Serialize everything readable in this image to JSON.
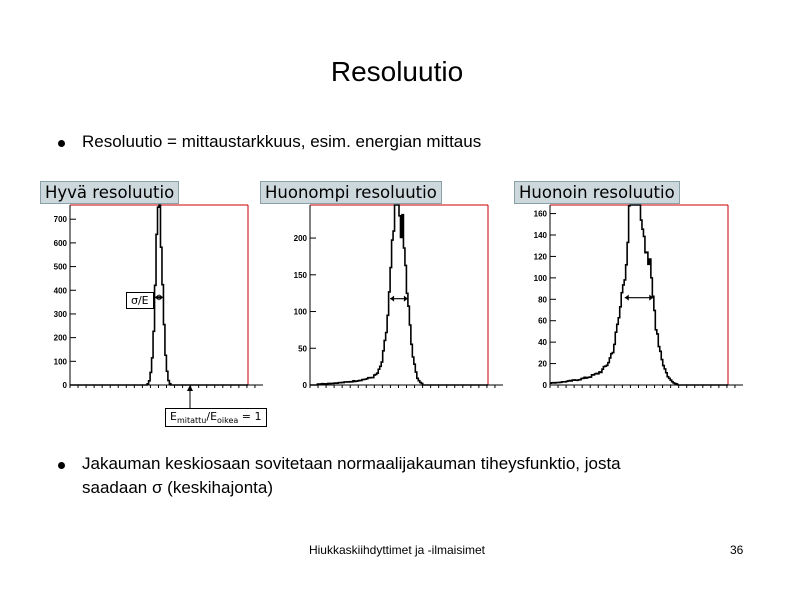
{
  "slide": {
    "title": "Resoluutio",
    "bullet1": "Resoluutio = mittaustarkkuus, esim. energian mittaus",
    "bullet2_line1": "Jakauman keskiosaan sovitetaan normaalijakauman tiheysfunktio, josta",
    "bullet2_line2": "saadaan σ (keskihajonta)",
    "footer": "Hiukkaskiihdyttimet ja -ilmaisimet",
    "page_number": "36"
  },
  "annotations": {
    "sigma_label": "σ/E",
    "ratio_label_prefix": "E",
    "ratio_sub1": "mitattu",
    "ratio_mid": "/E",
    "ratio_sub2": "oikea",
    "ratio_suffix": " = 1"
  },
  "chart_data": [
    {
      "type": "histogram",
      "title": "Hyvä resoluutio",
      "y_ticks": [
        "0",
        "100",
        "200",
        "300",
        "400",
        "500",
        "600",
        "700"
      ],
      "ylim": [
        0,
        760
      ],
      "xlim": [
        0.7,
        1.3
      ],
      "peak": {
        "x": 1.0,
        "y": 740,
        "sigma": 0.012
      },
      "tail": 0,
      "fwhm_marker": true
    },
    {
      "type": "histogram",
      "title": "Huonompi resoluutio",
      "y_ticks": [
        "0",
        "50",
        "100",
        "150",
        "200"
      ],
      "ylim": [
        0,
        245
      ],
      "xlim": [
        0.7,
        1.3
      ],
      "peak": {
        "x": 1.0,
        "y": 235,
        "sigma": 0.025
      },
      "tail": 0.12,
      "fwhm_marker": true
    },
    {
      "type": "histogram",
      "title": "Huonoin resoluutio",
      "y_ticks": [
        "0",
        "20",
        "40",
        "60",
        "80",
        "100",
        "120",
        "140",
        "160"
      ],
      "ylim": [
        0,
        168
      ],
      "xlim": [
        0.7,
        1.3
      ],
      "peak": {
        "x": 1.0,
        "y": 163,
        "sigma": 0.04
      },
      "tail": 0.3,
      "fwhm_marker": true
    }
  ],
  "colors": {
    "label_bg": "#cdd8dc",
    "frame_red": "#cc0000",
    "axis": "#000000"
  }
}
